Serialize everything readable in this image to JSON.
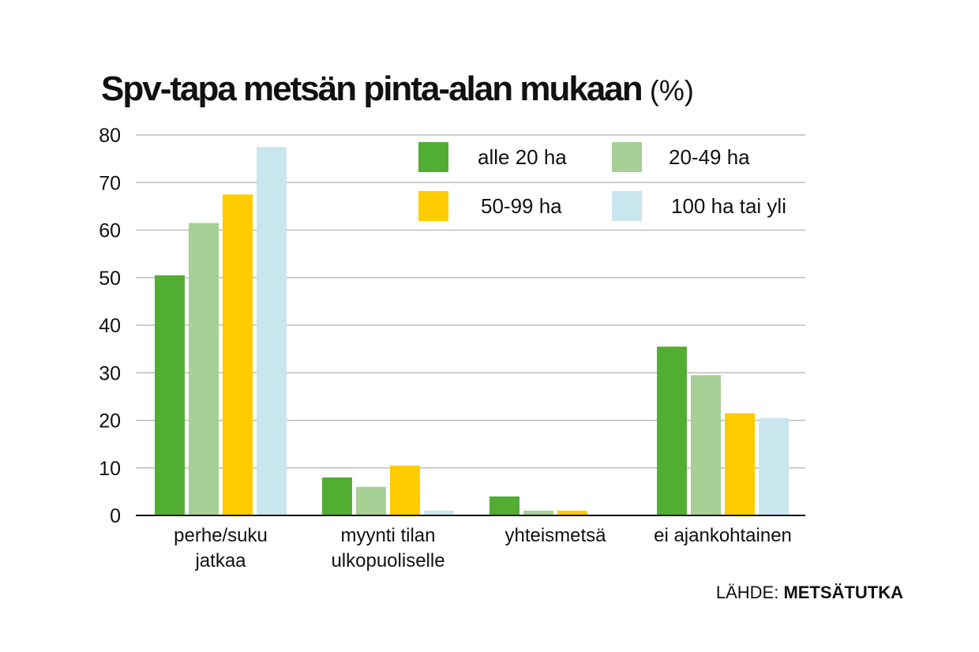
{
  "chart_data": {
    "type": "bar",
    "title": "Spv-tapa metsän pinta-alan mukaan",
    "title_unit": "(%)",
    "categories": [
      [
        "perhe/suku",
        "jatkaa"
      ],
      [
        "myynti tilan",
        "ulkopuoliselle"
      ],
      [
        "yhteismetsä"
      ],
      [
        "ei ajankohtainen"
      ]
    ],
    "series": [
      {
        "name": "alle 20 ha",
        "color": "#52ae32",
        "values": [
          50.5,
          8,
          4,
          35.5
        ]
      },
      {
        "name": "20-49 ha",
        "color": "#a6d096",
        "values": [
          61.5,
          6,
          1,
          29.5
        ]
      },
      {
        "name": "50-99 ha",
        "color": "#ffcc00",
        "values": [
          67.5,
          10.5,
          1,
          21.5
        ]
      },
      {
        "name": "100 ha tai yli",
        "color": "#c9e6ee",
        "values": [
          77.5,
          1,
          0,
          20.5
        ]
      }
    ],
    "ylim": [
      0,
      80
    ],
    "yticks": [
      0,
      10,
      20,
      30,
      40,
      50,
      60,
      70,
      80
    ],
    "grid": true,
    "legend_placement": "top-right"
  },
  "source": {
    "label": "LÄHDE:",
    "name": "METSÄTUTKA"
  }
}
